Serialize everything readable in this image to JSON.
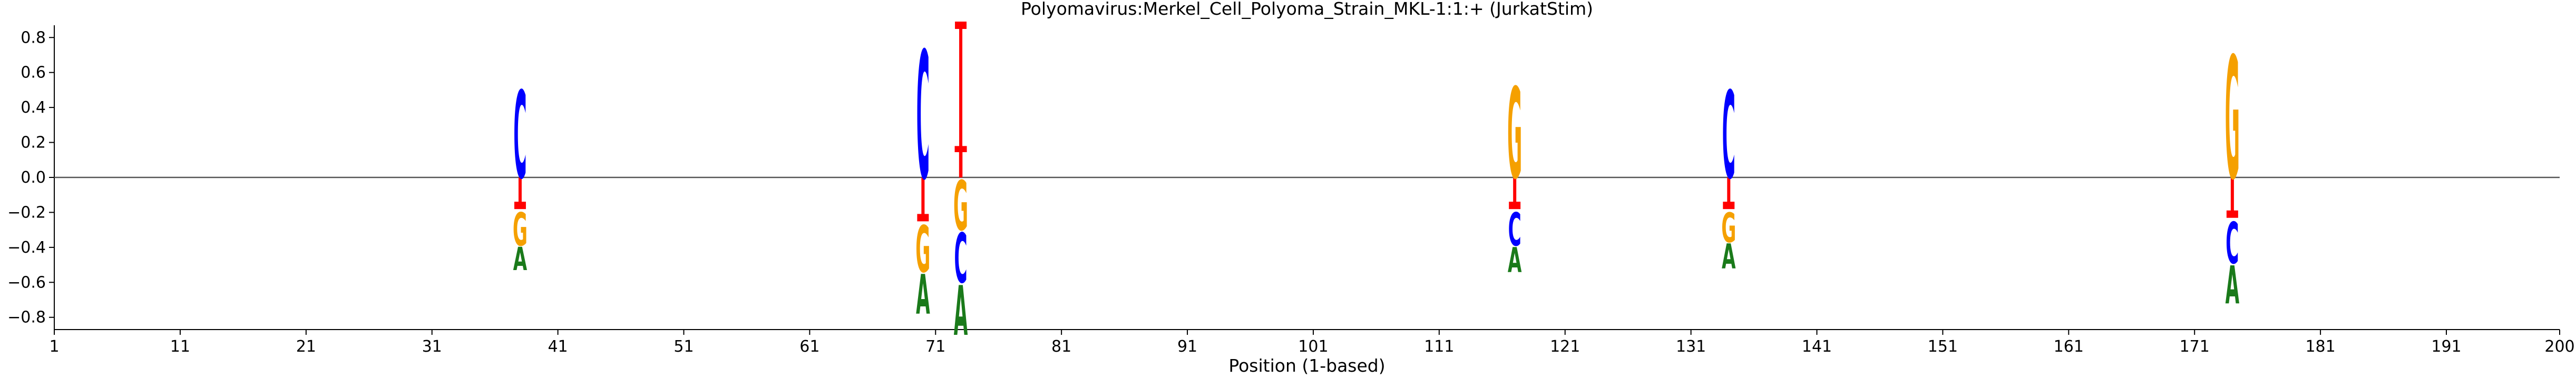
{
  "chart_data": {
    "type": "sequence-logo",
    "title": "Polyomavirus:Merkel_Cell_Polyoma_Strain_MKL-1:1:+  (JurkatStim)",
    "xlabel": "Position (1-based)",
    "ylabel": "",
    "xlim": [
      1,
      200
    ],
    "ylim": [
      -0.87,
      0.87
    ],
    "x_ticks": [
      1,
      11,
      21,
      31,
      41,
      51,
      61,
      71,
      81,
      91,
      101,
      111,
      121,
      131,
      141,
      151,
      161,
      171,
      181,
      191,
      200
    ],
    "y_ticks": [
      -0.8,
      -0.6,
      -0.4,
      -0.2,
      0.0,
      0.2,
      0.4,
      0.6,
      0.8
    ],
    "y_tick_labels": [
      "−0.8",
      "−0.6",
      "−0.4",
      "−0.2",
      "0.0",
      "0.2",
      "0.4",
      "0.6",
      "0.8"
    ],
    "colors": {
      "A": "#1a7a1a",
      "C": "#0000ff",
      "G": "#f5a000",
      "T": "#ff0000",
      "stem": "#ff0000",
      "zero_line": "#555555"
    },
    "positions": [
      {
        "x": 38,
        "marker": -0.16,
        "above": [
          {
            "base": "C",
            "h": 0.5
          }
        ],
        "below": [
          {
            "base": "G",
            "h": 0.2
          },
          {
            "base": "A",
            "h": 0.14
          }
        ]
      },
      {
        "x": 70,
        "marker": -0.23,
        "above": [
          {
            "base": "C",
            "h": 0.73
          }
        ],
        "below": [
          {
            "base": "G",
            "h": 0.28
          },
          {
            "base": "A",
            "h": 0.24
          }
        ]
      },
      {
        "x": 73,
        "marker": 0.87,
        "above": [
          {
            "base": "T",
            "h": 0.18
          }
        ],
        "below": [
          {
            "base": "G",
            "h": 0.3
          },
          {
            "base": "C",
            "h": 0.3
          },
          {
            "base": "A",
            "h": 0.3
          }
        ]
      },
      {
        "x": 117,
        "marker": -0.16,
        "above": [
          {
            "base": "G",
            "h": 0.52
          }
        ],
        "below": [
          {
            "base": "C",
            "h": 0.2
          },
          {
            "base": "A",
            "h": 0.15
          }
        ]
      },
      {
        "x": 134,
        "marker": -0.16,
        "above": [
          {
            "base": "C",
            "h": 0.5
          }
        ],
        "below": [
          {
            "base": "G",
            "h": 0.18
          },
          {
            "base": "A",
            "h": 0.15
          }
        ]
      },
      {
        "x": 174,
        "marker": -0.21,
        "above": [
          {
            "base": "G",
            "h": 0.7
          }
        ],
        "below": [
          {
            "base": "C",
            "h": 0.25
          },
          {
            "base": "A",
            "h": 0.23
          }
        ]
      }
    ]
  }
}
